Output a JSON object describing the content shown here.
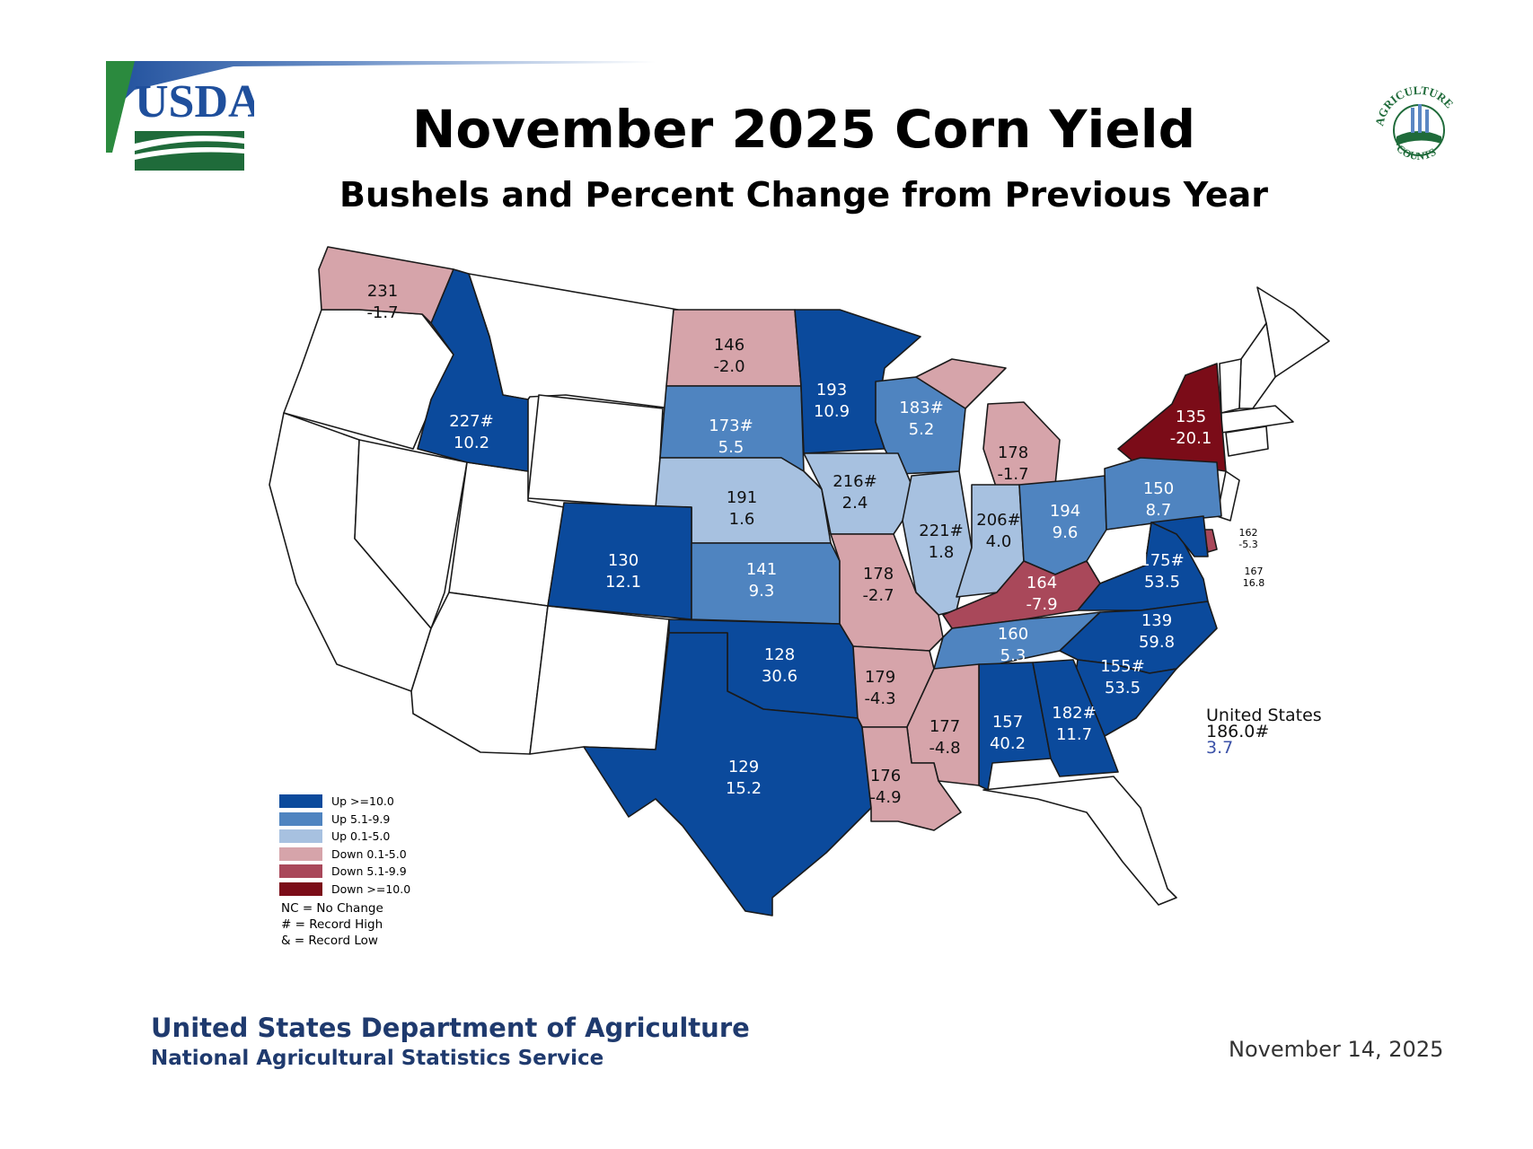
{
  "title": "November 2025 Corn Yield",
  "subtitle": "Bushels and Percent Change from Previous Year",
  "logo_left": {
    "text": "USDA",
    "icon": "usda-logo"
  },
  "logo_right": {
    "top_text": "AGRICULTURE",
    "bottom_text": "COUNTS",
    "icon": "agriculture-counts-seal"
  },
  "colors": {
    "up_10": "#0b4a9c",
    "up_5": "#4f84c0",
    "up_0": "#a7c1e0",
    "down_0": "#d6a4aa",
    "down_5": "#a9485a",
    "down_10": "#7b0c18",
    "none": "#ffffff"
  },
  "legend": [
    {
      "label": "Up >=10.0",
      "color": "#0b4a9c"
    },
    {
      "label": "Up 5.1-9.9",
      "color": "#4f84c0"
    },
    {
      "label": "Up 0.1-5.0",
      "color": "#a7c1e0"
    },
    {
      "label": "Down 0.1-5.0",
      "color": "#d6a4aa"
    },
    {
      "label": "Down 5.1-9.9",
      "color": "#a9485a"
    },
    {
      "label": "Down >=10.0",
      "color": "#7b0c18"
    }
  ],
  "notes": [
    "NC = No Change",
    "# = Record High",
    "& = Record Low"
  ],
  "states": [
    {
      "id": "WA",
      "yield": "231",
      "change": "-1.7"
    },
    {
      "id": "ID",
      "yield": "227#",
      "change": "10.2"
    },
    {
      "id": "ND",
      "yield": "146",
      "change": "-2.0"
    },
    {
      "id": "MN",
      "yield": "193",
      "change": "10.9"
    },
    {
      "id": "SD",
      "yield": "173#",
      "change": "5.5"
    },
    {
      "id": "WI",
      "yield": "183#",
      "change": "5.2"
    },
    {
      "id": "MI",
      "yield": "178",
      "change": "-1.7"
    },
    {
      "id": "NY",
      "yield": "135",
      "change": "-20.1"
    },
    {
      "id": "NE",
      "yield": "191",
      "change": "1.6"
    },
    {
      "id": "IA",
      "yield": "216#",
      "change": "2.4"
    },
    {
      "id": "IL",
      "yield": "221#",
      "change": "1.8"
    },
    {
      "id": "IN",
      "yield": "206#",
      "change": "4.0"
    },
    {
      "id": "OH",
      "yield": "194",
      "change": "9.6"
    },
    {
      "id": "PA",
      "yield": "150",
      "change": "8.7"
    },
    {
      "id": "CO",
      "yield": "130",
      "change": "12.1"
    },
    {
      "id": "KS",
      "yield": "141",
      "change": "9.3"
    },
    {
      "id": "MO",
      "yield": "178",
      "change": "-2.7"
    },
    {
      "id": "KY",
      "yield": "164",
      "change": "-7.9"
    },
    {
      "id": "VA",
      "yield": "175#",
      "change": "53.5"
    },
    {
      "id": "DE",
      "yield": "162",
      "change": "-5.3"
    },
    {
      "id": "MD",
      "yield": "167",
      "change": "16.8"
    },
    {
      "id": "TN",
      "yield": "160",
      "change": "5.3"
    },
    {
      "id": "NC",
      "yield": "139",
      "change": "59.8"
    },
    {
      "id": "OK",
      "yield": "128",
      "change": "30.6"
    },
    {
      "id": "AR",
      "yield": "179",
      "change": "-4.3"
    },
    {
      "id": "SC",
      "yield": "155#",
      "change": "53.5"
    },
    {
      "id": "AL",
      "yield": "157",
      "change": "40.2"
    },
    {
      "id": "GA",
      "yield": "182#",
      "change": "11.7"
    },
    {
      "id": "MS",
      "yield": "177",
      "change": "-4.8"
    },
    {
      "id": "TX",
      "yield": "129",
      "change": "15.2"
    },
    {
      "id": "LA",
      "yield": "176",
      "change": "-4.9"
    }
  ],
  "us_total": {
    "label": "United States",
    "yield": "186.0#",
    "change": "3.7"
  },
  "footer": {
    "org_line1": "United States Department of Agriculture",
    "org_line2": "National Agricultural Statistics Service",
    "date": "November 14, 2025"
  }
}
